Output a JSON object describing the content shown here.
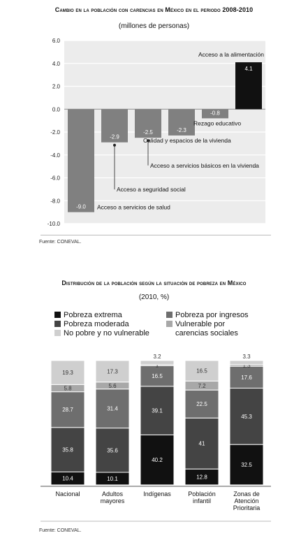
{
  "chart_data": [
    {
      "type": "bar",
      "title": "Cambio en la población con carencias en México en el periodo 2008-2010",
      "subtitle": "(millones de personas)",
      "categories": [
        "Acceso a servicios de salud",
        "Acceso a seguridad social",
        "Acceso a servicios básicos en la vivienda",
        "Calidad y espacios de la vivienda",
        "Rezago educativo",
        "Acceso a la alimentación"
      ],
      "values": [
        -9.0,
        -2.9,
        -2.5,
        -2.3,
        -0.8,
        4.1
      ],
      "value_labels": [
        "-9.0",
        "-2.9",
        "-2.5",
        "-2.3",
        "-0.8",
        "4.1"
      ],
      "ylim": [
        -10.0,
        6.0
      ],
      "yticks": [
        "6.0",
        "4.0",
        "2.0",
        "0.0",
        "-2.0",
        "-4.0",
        "-6.0",
        "-8.0",
        "-10.0"
      ],
      "grid": true,
      "colors": [
        "#808080",
        "#808080",
        "#808080",
        "#808080",
        "#808080",
        "#111111"
      ],
      "source": "Fuente: CONEVAL."
    },
    {
      "type": "bar",
      "stacked": true,
      "title": "Distribución de la población según la situación de pobreza en México",
      "subtitle": "(2010, %)",
      "categories": [
        "Nacional",
        "Adultos mayores",
        "Indígenas",
        "Población infantil",
        "Zonas de Atención Prioritaria"
      ],
      "category_lines": [
        [
          "Nacional"
        ],
        [
          "Adultos",
          "mayores"
        ],
        [
          "Indígenas"
        ],
        [
          "Población",
          "infantil"
        ],
        [
          "Zonas de",
          "Atención",
          "Prioritaria"
        ]
      ],
      "series": [
        {
          "name": "Pobreza extrema",
          "values": [
            10.4,
            10.1,
            40.2,
            12.8,
            32.5
          ],
          "color": "#111111"
        },
        {
          "name": "Pobreza moderada",
          "values": [
            35.8,
            35.6,
            39.1,
            41,
            45.3
          ],
          "color": "#444444"
        },
        {
          "name": "Pobreza por ingresos",
          "values": [
            28.7,
            31.4,
            16.5,
            22.5,
            17.6
          ],
          "color": "#6e6e6e"
        },
        {
          "name": "Vulnerable por carencias sociales",
          "values": [
            5.8,
            5.6,
            1,
            7.2,
            1.3
          ],
          "color": "#a8a8a8"
        },
        {
          "name": "No pobre y no vulnerable",
          "values": [
            19.3,
            17.3,
            3.2,
            16.5,
            3.3
          ],
          "color": "#cfcfcf"
        }
      ],
      "legend": [
        {
          "lines": [
            "Pobreza extrema"
          ],
          "series": 0
        },
        {
          "lines": [
            "Pobreza por ingresos"
          ],
          "series": 2
        },
        {
          "lines": [
            "Pobreza moderada"
          ],
          "series": 1
        },
        {
          "lines": [
            "Vulnerable por",
            "carencias sociales"
          ],
          "series": 3
        },
        {
          "lines": [
            "No pobre y no vulnerable"
          ],
          "series": 4
        }
      ],
      "legend_position": "top",
      "source": "Fuente: CONEVAL."
    }
  ]
}
